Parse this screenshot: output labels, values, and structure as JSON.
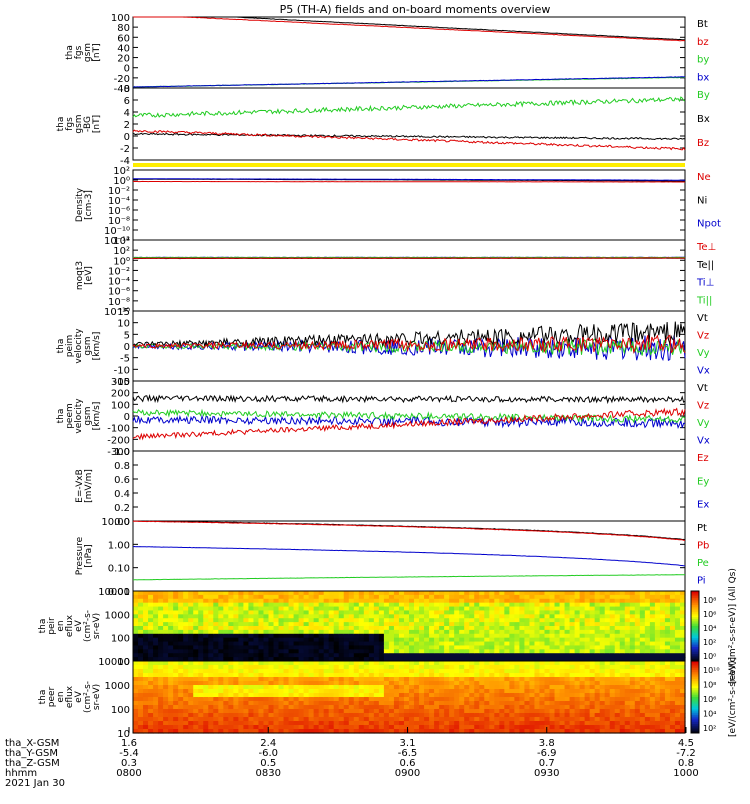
{
  "title": "P5 (TH-A) fields and on-board moments overview",
  "chart_data": [
    {
      "type": "line",
      "ylabel": [
        "tha",
        "fgs",
        "gsm",
        "[nT]"
      ],
      "ylim": [
        -40,
        100
      ],
      "yticks": [
        "100",
        "80",
        "60",
        "40",
        "20",
        "0",
        "-20",
        "-40"
      ],
      "legend": [
        {
          "label": "Bt",
          "color": "#000000"
        },
        {
          "label": "bz",
          "color": "#dd0000"
        },
        {
          "label": "by",
          "color": "#22cc22"
        },
        {
          "label": "bx",
          "color": "#0000cc"
        }
      ],
      "series": [
        {
          "color": "#000000",
          "y0": 110,
          "y1": 55,
          "noise": 0.4
        },
        {
          "color": "#dd0000",
          "y0": 105,
          "y1": 53,
          "noise": 0.4
        },
        {
          "color": "#22cc22",
          "y0": -38,
          "y1": -19,
          "noise": 0.4
        },
        {
          "color": "#0000cc",
          "y0": -38,
          "y1": -18,
          "noise": 0.4
        }
      ]
    },
    {
      "type": "line",
      "ylabel": [
        "tha",
        "fgs",
        "gsm",
        "-BG",
        "[nT]"
      ],
      "ylim": [
        -5,
        8
      ],
      "yticks": [
        "8",
        "6",
        "4",
        "2",
        "0",
        "-2",
        "-4"
      ],
      "legend": [
        {
          "label": "By",
          "color": "#22cc22"
        },
        {
          "label": "Bx",
          "color": "#000000"
        },
        {
          "label": "Bz",
          "color": "#dd0000"
        }
      ],
      "series": [
        {
          "color": "#22cc22",
          "y0": 3,
          "y1": 6,
          "noise": 0.4
        },
        {
          "color": "#000000",
          "y0": -0.3,
          "y1": -1.2,
          "noise": 0.15
        },
        {
          "color": "#dd0000",
          "y0": 0.3,
          "y1": -3.0,
          "noise": 0.2
        }
      ]
    },
    {
      "type": "line",
      "ylabel": [
        "Density",
        "[cm-3]"
      ],
      "ylim": [
        "1e-12",
        "1e2"
      ],
      "yticks": [
        "10²",
        "10⁰",
        "10⁻²",
        "10⁻⁴",
        "10⁻⁶",
        "10⁻⁸",
        "10⁻¹⁰",
        "10⁻¹²"
      ],
      "legend": [
        {
          "label": "Ne",
          "color": "#dd0000"
        },
        {
          "label": "Ni",
          "color": "#000000"
        },
        {
          "label": "Npot",
          "color": "#0000cc"
        }
      ],
      "series": [
        {
          "color": "#000000",
          "y0": 1.5,
          "y1": 0.6,
          "noise": 0.03
        },
        {
          "color": "#dd0000",
          "y0": 0.5,
          "y1": 0.4,
          "noise": 0.03
        },
        {
          "color": "#0000cc",
          "y0": 1.8,
          "y1": 0.9,
          "noise": 0.03
        }
      ]
    },
    {
      "type": "line",
      "ylabel": [
        "moqt3",
        "[eV]"
      ],
      "ylim": [
        "1e-10",
        "1e4"
      ],
      "yticks": [
        "10⁴",
        "10²",
        "10⁰",
        "10⁻²",
        "10⁻⁴",
        "10⁻⁶",
        "10⁻⁸",
        "10⁻¹⁰"
      ],
      "legend": [
        {
          "label": "Te⊥",
          "color": "#dd0000"
        },
        {
          "label": "Te||",
          "color": "#000000"
        },
        {
          "label": "Ti⊥",
          "color": "#0000cc"
        },
        {
          "label": "Ti||",
          "color": "#22cc22"
        }
      ],
      "series": [
        {
          "color": "#0000cc",
          "y0": 3.7,
          "y1": 3.7,
          "noise": 0.06
        },
        {
          "color": "#22cc22",
          "y0": 3.6,
          "y1": 3.6,
          "noise": 0.06
        },
        {
          "color": "#000000",
          "y0": 2.3,
          "y1": 2.6,
          "noise": 0.05
        },
        {
          "color": "#dd0000",
          "y0": 2.5,
          "y1": 2.8,
          "noise": 0.05
        }
      ]
    },
    {
      "type": "line",
      "ylabel": [
        "tha",
        "peim",
        "velocity",
        "gsm",
        "[km/s]"
      ],
      "ylim": [
        -15,
        15
      ],
      "yticks": [
        "15",
        "10",
        "5",
        "0",
        "-5",
        "-10",
        "-15"
      ],
      "legend": [
        {
          "label": "Vt",
          "color": "#000000"
        },
        {
          "label": "Vz",
          "color": "#dd0000"
        },
        {
          "label": "Vy",
          "color": "#22cc22"
        },
        {
          "label": "Vx",
          "color": "#0000cc"
        }
      ],
      "series": [
        {
          "color": "#0000cc",
          "y0": 0,
          "y1": -1,
          "noise": 1,
          "noise1": 6
        },
        {
          "color": "#22cc22",
          "y0": 0,
          "y1": -0.5,
          "noise": 0.8,
          "noise1": 4
        },
        {
          "color": "#000000",
          "y0": 0.5,
          "y1": 6,
          "noise": 1,
          "noise1": 5
        },
        {
          "color": "#dd0000",
          "y0": 0,
          "y1": 1,
          "noise": 0.8,
          "noise1": 4
        }
      ]
    },
    {
      "type": "line",
      "ylabel": [
        "tha",
        "peem",
        "velocity",
        "gsm",
        "[km/s]"
      ],
      "ylim": [
        -300,
        300
      ],
      "yticks": [
        "300",
        "200",
        "100",
        "0",
        "-100",
        "-200",
        "-300"
      ],
      "legend": [
        {
          "label": "Vt",
          "color": "#000000"
        },
        {
          "label": "Vz",
          "color": "#dd0000"
        },
        {
          "label": "Vy",
          "color": "#22cc22"
        },
        {
          "label": "Vx",
          "color": "#0000cc"
        }
      ],
      "series": [
        {
          "color": "#0000cc",
          "y0": -30,
          "y1": -60,
          "noise": 30,
          "noise1": 45
        },
        {
          "color": "#000000",
          "y0": 150,
          "y1": 140,
          "noise": 25,
          "noise1": 25
        },
        {
          "color": "#22cc22",
          "y0": 30,
          "y1": -30,
          "noise": 25,
          "noise1": 30
        },
        {
          "color": "#dd0000",
          "y0": -180,
          "y1": 40,
          "noise": 20,
          "noise1": 30
        }
      ]
    },
    {
      "type": "line",
      "ylabel": [
        "E=-VxB",
        "[mV/m]"
      ],
      "ylim": [
        0,
        1
      ],
      "yticks": [
        "1.0",
        "0.8",
        "0.6",
        "0.4",
        "0.2",
        "0.0"
      ],
      "legend": [
        {
          "label": "Ez",
          "color": "#dd0000"
        },
        {
          "label": "Ey",
          "color": "#22cc22"
        },
        {
          "label": "Ex",
          "color": "#0000cc"
        }
      ],
      "series": []
    },
    {
      "type": "line",
      "ylabel": [
        "Pressure",
        "[nPa]"
      ],
      "ylim": [
        0.01,
        10
      ],
      "yticks": [
        "10.00",
        "1.00",
        "0.10",
        "0.01"
      ],
      "legend": [
        {
          "label": "Pt",
          "color": "#000000"
        },
        {
          "label": "Pb",
          "color": "#dd0000"
        },
        {
          "label": "Pe",
          "color": "#22cc22"
        },
        {
          "label": "Pi",
          "color": "#0000cc"
        }
      ],
      "series": [
        {
          "color": "#000000",
          "y0": 10.2,
          "y1": 1.6,
          "noise": 0.02
        },
        {
          "color": "#dd0000",
          "y0": 9.8,
          "y1": 1.5,
          "noise": 0.02
        },
        {
          "color": "#0000cc",
          "y0": 0.8,
          "y1": 0.12,
          "noise": 0.01
        },
        {
          "color": "#22cc22",
          "y0": 0.03,
          "y1": 0.05,
          "noise": 0.01
        }
      ]
    },
    {
      "type": "heatmap",
      "ylabel": [
        "tha",
        "peir",
        "en",
        "eflux",
        "eV",
        "(cm²-s-",
        "sr-eV)"
      ],
      "ylim": [
        5,
        20000
      ],
      "yticks": [
        "10000",
        "1000",
        "100",
        "10"
      ],
      "colorbar_label": "[eV/(cm²-s-sr-eV)] (All Qs)",
      "colorbar_ticks": [
        "10⁸",
        "10⁶",
        "10⁴",
        "10²",
        "10⁰"
      ]
    },
    {
      "type": "heatmap",
      "ylabel": [
        "tha",
        "peer",
        "en",
        "eflux",
        "eV",
        "(cm²-s-",
        "sr-eV)"
      ],
      "ylim": [
        5,
        20000
      ],
      "yticks": [
        "10000",
        "1000",
        "100",
        "10"
      ],
      "colorbar_label": "[eV/(cm²-s-sr-eV)]",
      "colorbar_ticks": [
        "10¹⁰",
        "10⁸",
        "10⁶",
        "10⁴",
        "10²"
      ]
    }
  ],
  "x_axis": {
    "ticks": [
      "0800",
      "0830",
      "0900",
      "0930",
      "1000"
    ],
    "rows": [
      {
        "label": "tha_X-GSM",
        "values": [
          "1.6",
          "2.4",
          "3.1",
          "3.8",
          "4.5"
        ]
      },
      {
        "label": "tha_Y-GSM",
        "values": [
          "-5.4",
          "-6.0",
          "-6.5",
          "-6.9",
          "-7.2"
        ]
      },
      {
        "label": "tha_Z-GSM",
        "values": [
          "0.3",
          "0.5",
          "0.6",
          "0.7",
          "0.8"
        ]
      },
      {
        "label": "hhmm",
        "values": [
          "0800",
          "0830",
          "0900",
          "0930",
          "1000"
        ]
      }
    ],
    "date": "2021 Jan 30"
  }
}
